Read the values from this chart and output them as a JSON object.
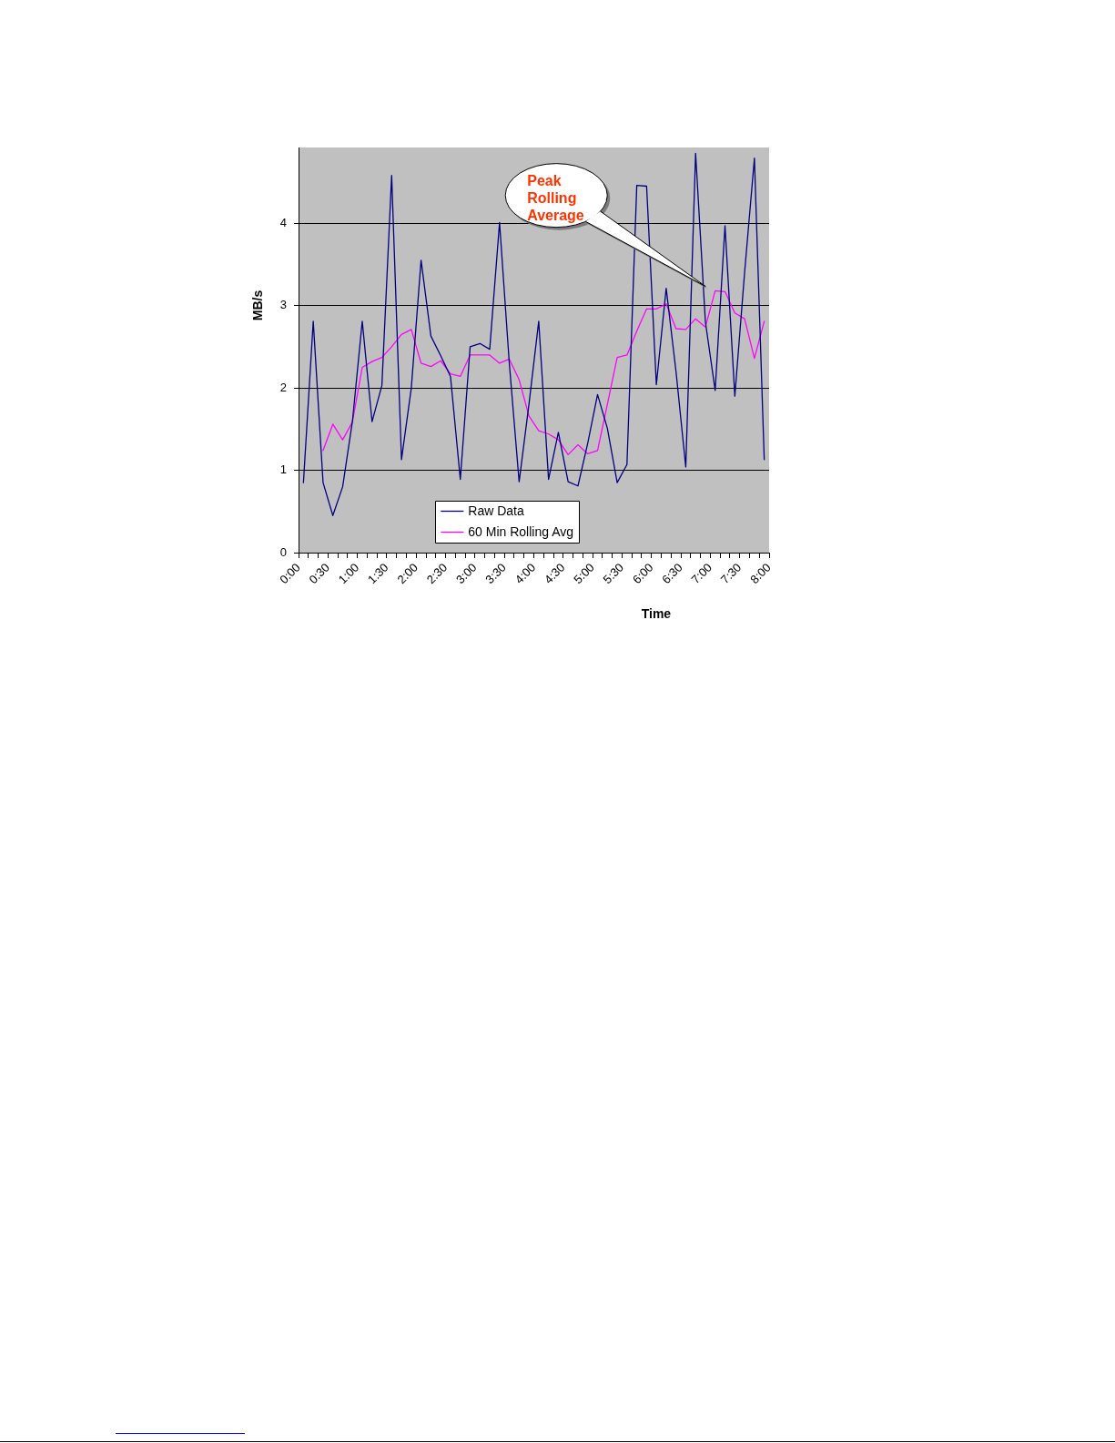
{
  "chart_data": {
    "type": "line",
    "xlabel": "Time",
    "ylabel": "MB/s",
    "x": [
      0.083,
      0.25,
      0.417,
      0.583,
      0.75,
      0.917,
      1.083,
      1.25,
      1.417,
      1.583,
      1.75,
      1.917,
      2.083,
      2.25,
      2.417,
      2.583,
      2.75,
      2.917,
      3.083,
      3.25,
      3.417,
      3.583,
      3.75,
      3.917,
      4.083,
      4.25,
      4.417,
      4.583,
      4.75,
      4.917,
      5.083,
      5.25,
      5.417,
      5.583,
      5.75,
      5.917,
      6.083,
      6.25,
      6.417,
      6.583,
      6.75,
      6.917,
      7.083,
      7.25,
      7.417,
      7.583,
      7.75,
      7.917
    ],
    "xlim": [
      0,
      8
    ],
    "xticks": [
      {
        "value": 0,
        "label": "0:00"
      },
      {
        "value": 0.167,
        "label": null
      },
      {
        "value": 0.333,
        "label": null
      },
      {
        "value": 0.5,
        "label": "0:30"
      },
      {
        "value": 0.667,
        "label": null
      },
      {
        "value": 0.833,
        "label": null
      },
      {
        "value": 1,
        "label": "1:00"
      },
      {
        "value": 1.167,
        "label": null
      },
      {
        "value": 1.333,
        "label": null
      },
      {
        "value": 1.5,
        "label": "1:30"
      },
      {
        "value": 1.667,
        "label": null
      },
      {
        "value": 1.833,
        "label": null
      },
      {
        "value": 2,
        "label": "2:00"
      },
      {
        "value": 2.167,
        "label": null
      },
      {
        "value": 2.333,
        "label": null
      },
      {
        "value": 2.5,
        "label": "2:30"
      },
      {
        "value": 2.667,
        "label": null
      },
      {
        "value": 2.833,
        "label": null
      },
      {
        "value": 3,
        "label": "3:00"
      },
      {
        "value": 3.167,
        "label": null
      },
      {
        "value": 3.333,
        "label": null
      },
      {
        "value": 3.5,
        "label": "3:30"
      },
      {
        "value": 3.667,
        "label": null
      },
      {
        "value": 3.833,
        "label": null
      },
      {
        "value": 4,
        "label": "4:00"
      },
      {
        "value": 4.167,
        "label": null
      },
      {
        "value": 4.333,
        "label": null
      },
      {
        "value": 4.5,
        "label": "4:30"
      },
      {
        "value": 4.667,
        "label": null
      },
      {
        "value": 4.833,
        "label": null
      },
      {
        "value": 5,
        "label": "5:00"
      },
      {
        "value": 5.167,
        "label": null
      },
      {
        "value": 5.333,
        "label": null
      },
      {
        "value": 5.5,
        "label": "5:30"
      },
      {
        "value": 5.667,
        "label": null
      },
      {
        "value": 5.833,
        "label": null
      },
      {
        "value": 6,
        "label": "6:00"
      },
      {
        "value": 6.167,
        "label": null
      },
      {
        "value": 6.333,
        "label": null
      },
      {
        "value": 6.5,
        "label": "6:30"
      },
      {
        "value": 6.667,
        "label": null
      },
      {
        "value": 6.833,
        "label": null
      },
      {
        "value": 7,
        "label": "7:00"
      },
      {
        "value": 7.167,
        "label": null
      },
      {
        "value": 7.333,
        "label": null
      },
      {
        "value": 7.5,
        "label": "7:30"
      },
      {
        "value": 7.667,
        "label": null
      },
      {
        "value": 7.833,
        "label": null
      },
      {
        "value": 8,
        "label": "8:00"
      }
    ],
    "ylim": [
      0,
      4.92
    ],
    "yticks": [
      0,
      1,
      2,
      3,
      4
    ],
    "series": [
      {
        "name": "Raw Data",
        "color": "#000080",
        "values": [
          0.85,
          2.81,
          0.85,
          0.45,
          0.8,
          1.6,
          2.81,
          1.59,
          2.03,
          4.58,
          1.13,
          2.0,
          3.55,
          2.63,
          2.39,
          2.14,
          0.89,
          2.5,
          2.54,
          2.47,
          4.01,
          2.3,
          0.86,
          1.8,
          2.81,
          0.89,
          1.46,
          0.86,
          0.81,
          1.33,
          1.92,
          1.51,
          0.85,
          1.07,
          4.46,
          4.45,
          2.04,
          3.21,
          2.2,
          1.04,
          4.85,
          2.8,
          1.97,
          3.97,
          1.9,
          3.4,
          4.79,
          1.13
        ]
      },
      {
        "name": "60 Min Rolling Avg",
        "color": "#ff00ff",
        "values": [
          null,
          null,
          1.24,
          1.56,
          1.37,
          1.59,
          2.25,
          2.32,
          2.37,
          2.5,
          2.65,
          2.71,
          2.3,
          2.26,
          2.33,
          2.17,
          2.14,
          2.4,
          2.4,
          2.4,
          2.3,
          2.35,
          2.1,
          1.66,
          1.48,
          1.44,
          1.37,
          1.19,
          1.31,
          1.2,
          1.24,
          1.8,
          2.37,
          2.4,
          2.69,
          2.96,
          2.96,
          3.02,
          2.72,
          2.71,
          2.84,
          2.74,
          3.18,
          3.17,
          2.91,
          2.84,
          2.36,
          2.81
        ]
      }
    ],
    "annotations": [
      "Peak Rolling Average"
    ],
    "grid": "y",
    "legend": "bottom",
    "marker": "none"
  }
}
